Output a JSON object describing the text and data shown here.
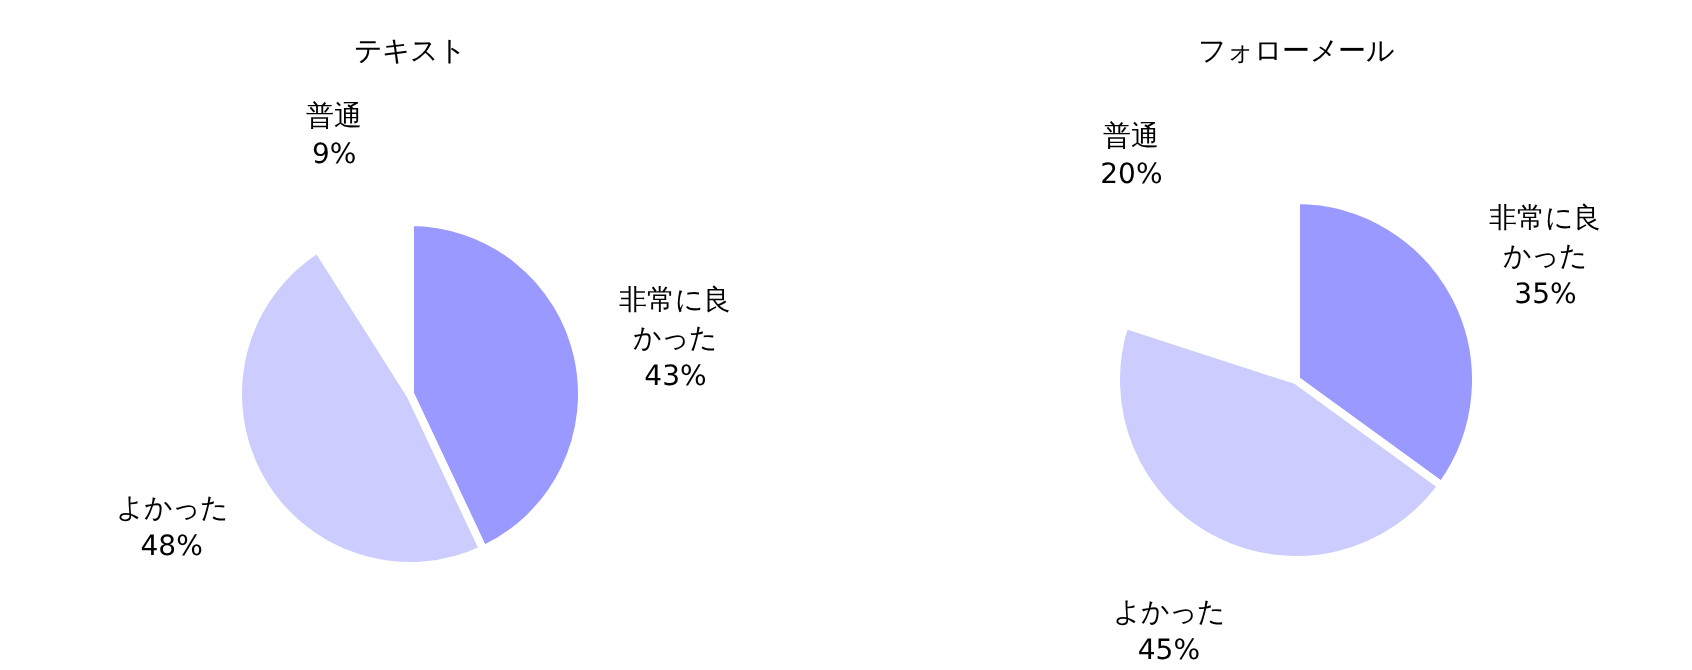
{
  "chart_data": [
    {
      "type": "pie",
      "title": "テキスト",
      "categories": [
        "非常に良かった",
        "よかった",
        "普通"
      ],
      "values": [
        43,
        48,
        9
      ],
      "colors": [
        "#9999ff",
        "#ccccff",
        "#ffffff"
      ],
      "value_labels": [
        "43%",
        "48%",
        "9%"
      ]
    },
    {
      "type": "pie",
      "title": "フォローメール",
      "categories": [
        "非常に良かった",
        "よかった",
        "普通"
      ],
      "values": [
        35,
        45,
        20
      ],
      "colors": [
        "#9999ff",
        "#ccccff",
        "#ffffff"
      ],
      "value_labels": [
        "35%",
        "45%",
        "20%"
      ]
    }
  ]
}
